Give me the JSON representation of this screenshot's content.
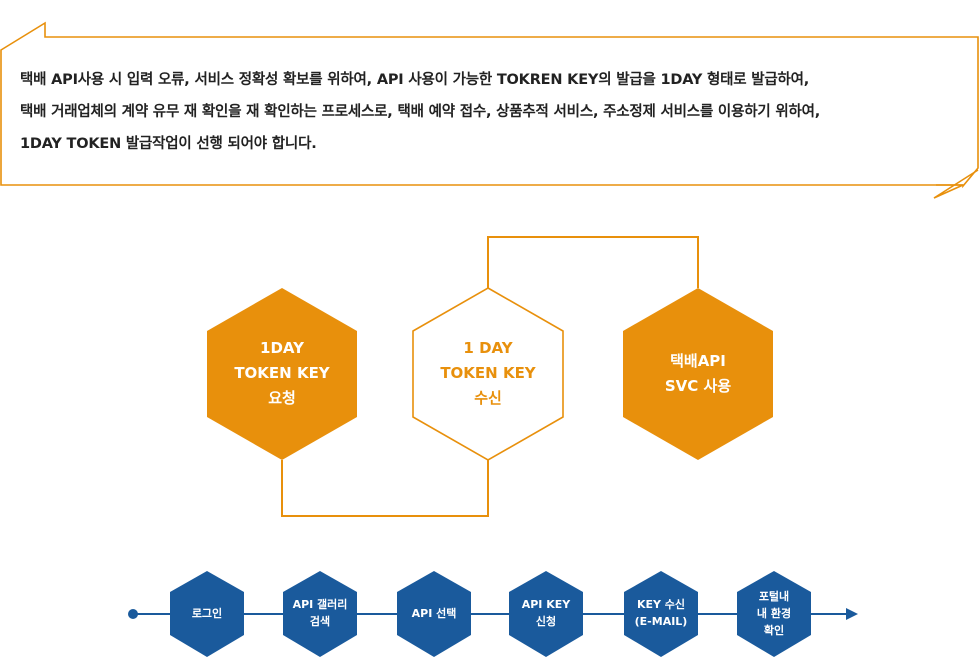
{
  "colors": {
    "accent": "#e8900c",
    "step": "#1a5a9c",
    "text": "#222222",
    "white": "#ffffff"
  },
  "notice": {
    "lines": [
      "택배 API사용 시 입력 오류, 서비스 정확성 확보를 위하여, API 사용이 가능한 TOKREN KEY의 발급을 1DAY 형태로 발급하여,",
      "택배 거래업체의 계약 유무 재 확인을 재 확인하는 프로세스로, 택배 예약 접수, 상품추적 서비스, 주소정제 서비스를 이용하기 위하여,",
      "1DAY TOKEN 발급작업이 선행 되어야 합니다."
    ]
  },
  "main_flow": [
    {
      "lines": [
        "1DAY",
        "TOKEN KEY",
        "요청"
      ],
      "style": "filled"
    },
    {
      "lines": [
        "1 DAY",
        "TOKEN KEY",
        "수신"
      ],
      "style": "outline"
    },
    {
      "lines": [
        "택배API",
        "SVC 사용"
      ],
      "style": "filled"
    }
  ],
  "steps": [
    {
      "lines": [
        "로그인"
      ]
    },
    {
      "lines": [
        "API 갤러리",
        "검색"
      ]
    },
    {
      "lines": [
        "API 선택"
      ]
    },
    {
      "lines": [
        "API KEY",
        "신청"
      ]
    },
    {
      "lines": [
        "KEY 수신",
        "(E-MAIL)"
      ]
    },
    {
      "lines": [
        "포털내",
        "내 환경",
        "확인"
      ]
    }
  ]
}
